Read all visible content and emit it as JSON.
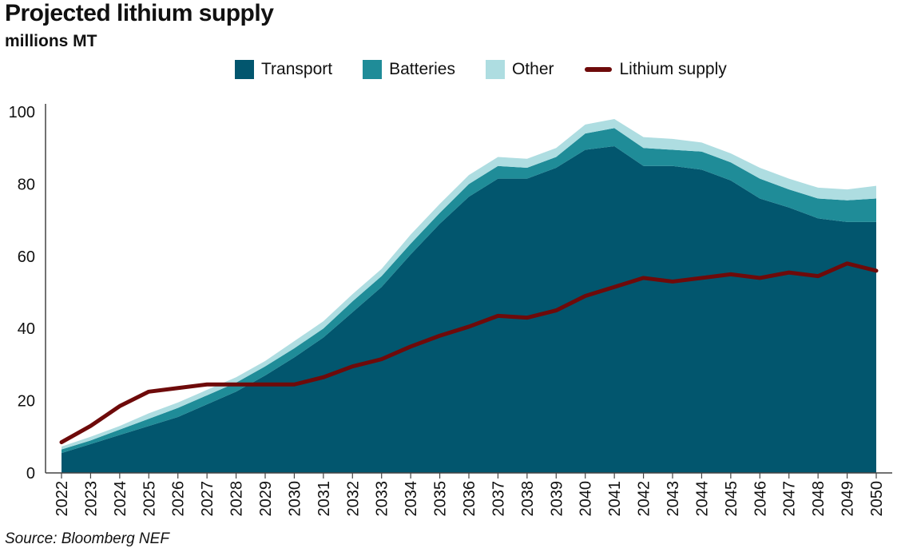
{
  "title": "Projected lithium supply",
  "subtitle": "millions MT",
  "source": "Source: Bloomberg NEF",
  "legend": [
    {
      "label": "Transport",
      "color": "#02566e",
      "kind": "area"
    },
    {
      "label": "Batteries",
      "color": "#1f8c98",
      "kind": "area"
    },
    {
      "label": "Other",
      "color": "#aedde1",
      "kind": "area"
    },
    {
      "label": "Lithium supply",
      "color": "#6e0a0a",
      "kind": "line"
    }
  ],
  "chart_data": {
    "type": "area",
    "stacked": true,
    "x": [
      "2022",
      "2023",
      "2024",
      "2025",
      "2026",
      "2027",
      "2028",
      "2029",
      "2030",
      "2031",
      "2032",
      "2033",
      "2034",
      "2035",
      "2036",
      "2037",
      "2038",
      "2039",
      "2040",
      "2041",
      "2042",
      "2043",
      "2044",
      "2045",
      "2046",
      "2047",
      "2048",
      "2049",
      "2050"
    ],
    "ylim": [
      0,
      100
    ],
    "yticks": [
      0,
      20,
      40,
      60,
      80,
      100
    ],
    "series": [
      {
        "name": "Transport",
        "type": "area",
        "color": "#02566e",
        "values": [
          5.5,
          8,
          10.5,
          13,
          15.5,
          19,
          22.5,
          27,
          32,
          37.5,
          44.5,
          51.5,
          60.5,
          69,
          76.5,
          81.5,
          81.5,
          84.5,
          89.5,
          90.5,
          85,
          85,
          84,
          81,
          76,
          73.5,
          70.5,
          69.5,
          69.5
        ]
      },
      {
        "name": "Batteries",
        "type": "area",
        "color": "#1f8c98",
        "values": [
          1,
          1,
          1.5,
          2,
          2.5,
          2.5,
          2.5,
          2.5,
          2.5,
          2.5,
          3,
          3,
          3,
          3,
          3.5,
          3.5,
          3,
          3,
          4.5,
          5,
          5,
          4.5,
          5,
          5,
          5.5,
          5,
          5.5,
          6,
          6.5
        ]
      },
      {
        "name": "Other",
        "type": "area",
        "color": "#aedde1",
        "values": [
          0.8,
          1,
          1,
          1.5,
          1.5,
          1.5,
          1.5,
          1.5,
          2,
          2,
          2,
          2,
          2.5,
          2.5,
          2.5,
          2.5,
          2.5,
          2.5,
          2.5,
          2.5,
          3,
          3,
          2.5,
          2.5,
          3,
          3,
          3,
          3,
          3.5
        ]
      },
      {
        "name": "Lithium supply",
        "type": "line",
        "color": "#6e0a0a",
        "values": [
          8.5,
          13,
          18.5,
          22.5,
          23.5,
          24.5,
          24.5,
          24.5,
          24.5,
          26.5,
          29.5,
          31.5,
          35,
          38,
          40.5,
          43.5,
          43,
          45,
          49,
          51.5,
          54,
          53,
          54,
          55,
          54,
          55.5,
          54.5,
          58,
          56
        ]
      }
    ]
  }
}
